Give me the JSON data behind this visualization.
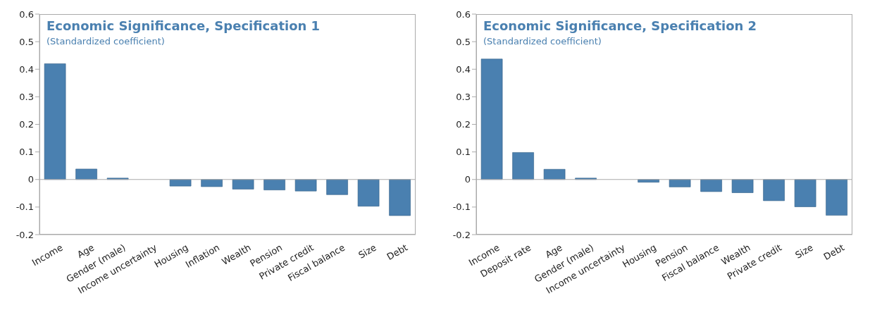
{
  "chart_data": [
    {
      "type": "bar",
      "title": "Economic Significance, Specification 1",
      "subtitle": "(Standardized coefficient)",
      "categories": [
        "Income",
        "Age",
        "Gender (male)",
        "Income uncertainty",
        "Housing",
        "Inflation",
        "Wealth",
        "Pension",
        "Private credit",
        "Fiscal balance",
        "Size",
        "Debt"
      ],
      "values": [
        0.42,
        0.038,
        0.005,
        0,
        -0.024,
        -0.026,
        -0.035,
        -0.038,
        -0.042,
        -0.055,
        -0.097,
        -0.131
      ],
      "color": "#4a80b0",
      "ylim": [
        -0.2,
        0.6
      ],
      "yticks": [
        -0.2,
        -0.1,
        0,
        0.1,
        0.2,
        0.3,
        0.4,
        0.5,
        0.6
      ],
      "grid": false,
      "ref_lines": [
        {
          "axis": "y",
          "value": 0,
          "color": "#aaaaaa"
        }
      ]
    },
    {
      "type": "bar",
      "title": "Economic Significance, Specification 2",
      "subtitle": "(Standardized coefficient)",
      "categories": [
        "Income",
        "Deposit rate",
        "Age",
        "Gender (male)",
        "Income uncertainty",
        "Housing",
        "Pension",
        "Fiscal balance",
        "Wealth",
        "Private credit",
        "Size",
        "Debt"
      ],
      "values": [
        0.437,
        0.098,
        0.037,
        0.005,
        0,
        -0.01,
        -0.027,
        -0.044,
        -0.048,
        -0.077,
        -0.099,
        -0.13
      ],
      "color": "#4a80b0",
      "ylim": [
        -0.2,
        0.6
      ],
      "yticks": [
        -0.2,
        -0.1,
        0,
        0.1,
        0.2,
        0.3,
        0.4,
        0.5,
        0.6
      ],
      "grid": false,
      "ref_lines": [
        {
          "axis": "y",
          "value": 0,
          "color": "#aaaaaa"
        }
      ]
    }
  ]
}
